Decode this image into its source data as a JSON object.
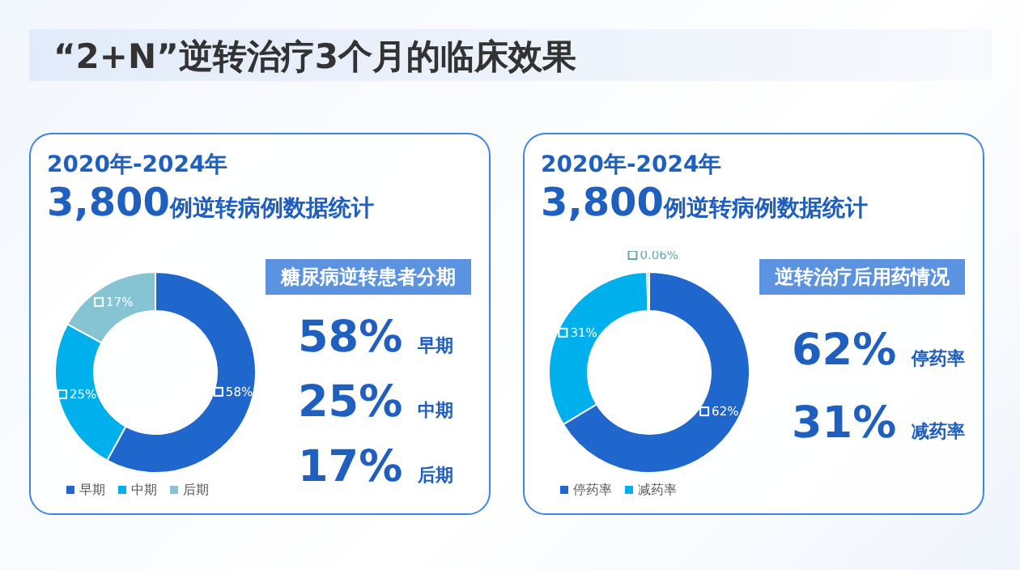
{
  "chart_data": [
    {
      "type": "donut",
      "title": "2020年-2024年",
      "subtitle": "3,800例逆转病例数据统计",
      "categories": [
        "早期",
        "中期",
        "后期"
      ],
      "values": [
        58,
        25,
        17
      ],
      "colors": [
        "#1f67cc",
        "#00b0ec",
        "#86c4d4"
      ],
      "value_labels": [
        "58%",
        "25%",
        "17%"
      ],
      "legend": "bottom",
      "annotations": [
        "“2+N”逆转治疗3个月的临床效果",
        "糖尿病逆转患者分期",
        "58% 早期",
        "25% 中期",
        "17% 后期"
      ]
    },
    {
      "type": "donut",
      "title": "2020年-2024年",
      "subtitle": "3,800例逆转病例数据统计",
      "categories": [
        "停药率",
        "减药率",
        null
      ],
      "values": [
        62,
        31,
        0.06
      ],
      "colors": [
        "#1f67cc",
        "#00b0ec",
        "#7fb0b8"
      ],
      "value_labels": [
        "62%",
        "31%",
        "0.06%"
      ],
      "legend": "bottom",
      "annotations": [
        "逆转治疗后用药情况",
        "62% 停药率",
        "31% 减药率"
      ]
    }
  ]
}
